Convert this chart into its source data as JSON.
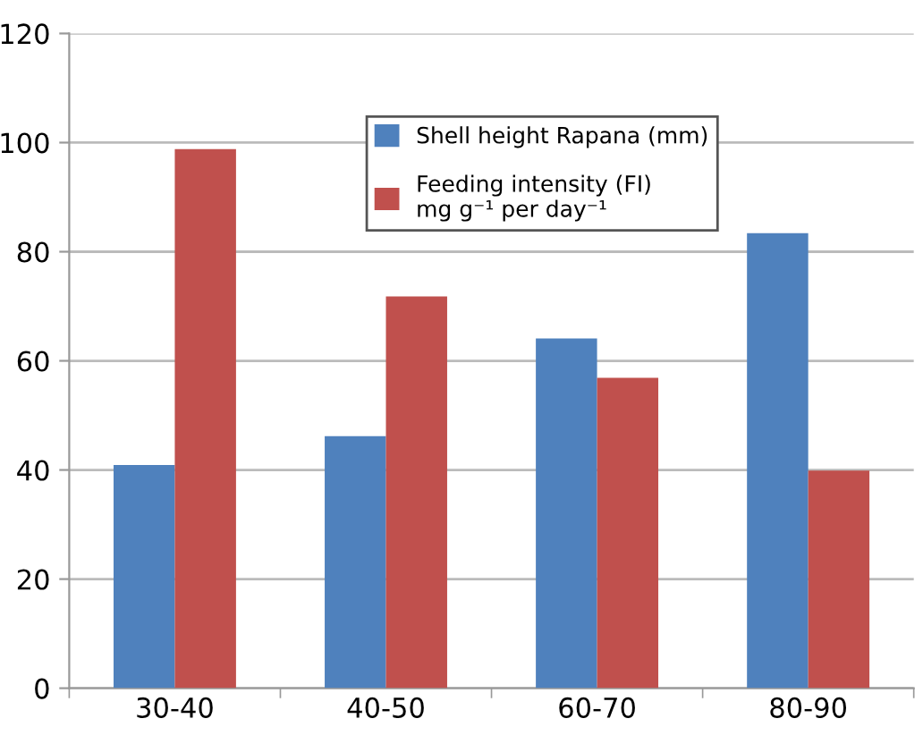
{
  "chart_data": {
    "type": "bar",
    "categories": [
      "30-40",
      "40-50",
      "60-70",
      "80-90"
    ],
    "series": [
      {
        "name": "Shell height Rapana (mm)",
        "color": "#4f81bd",
        "values": [
          40.9,
          46.2,
          64.1,
          83.4
        ]
      },
      {
        "name": "Feeding intensity (FI)\nmg g⁻¹ per day⁻¹",
        "color": "#c0504d",
        "values": [
          98.8,
          71.8,
          56.9,
          39.9
        ]
      }
    ],
    "ylim": [
      0,
      120
    ],
    "yticks": [
      0,
      20,
      40,
      60,
      80,
      100,
      120
    ],
    "grid": "y",
    "legend": "top"
  }
}
